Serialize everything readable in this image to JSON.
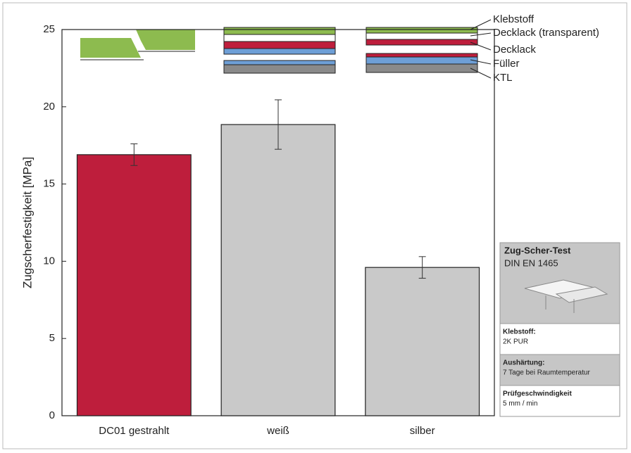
{
  "chart_data": {
    "type": "bar",
    "y_label": "Zugscherfestigkeit [MPa]",
    "categories": [
      "DC01 gestrahlt",
      "weiß",
      "silber"
    ],
    "values": [
      16.9,
      18.85,
      9.6
    ],
    "errors": [
      0.7,
      1.6,
      0.7
    ],
    "colors": [
      "#be1e3c",
      "#c9c9c9",
      "#c9c9c9"
    ],
    "ylim": [
      0,
      25
    ],
    "yticks": [
      0,
      5,
      10,
      15,
      20,
      25
    ],
    "grid": false,
    "layer_labels": [
      "Klebstoff",
      "Decklack (transparent)",
      "Decklack",
      "Füller",
      "KTL"
    ],
    "info_box": {
      "title": "Zug-Scher-Test",
      "standard": "DIN EN 1465",
      "rows": [
        [
          "Klebstoff:",
          "2K PUR"
        ],
        [
          "Aushärtung:",
          "7 Tage bei Raumtemperatur"
        ],
        [
          "Prüfgeschwindigkeit",
          "5 mm / min"
        ]
      ]
    }
  }
}
